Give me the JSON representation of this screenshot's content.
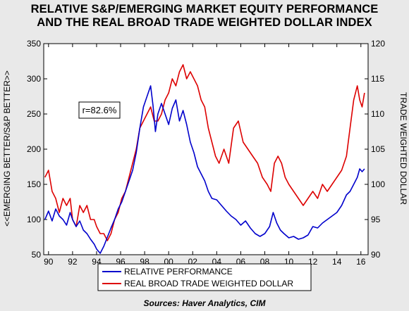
{
  "title_line1": "RELATIVE S&P/EMERGING MARKET EQUITY PERFORMANCE",
  "title_line2": "AND THE REAL BROAD TRADE WEIGHTED DOLLAR INDEX",
  "source": "Sources:  Haver Analytics, CIM",
  "chart_data": {
    "type": "line",
    "title": "RELATIVE S&P/EMERGING MARKET EQUITY PERFORMANCE AND THE REAL BROAD TRADE WEIGHTED DOLLAR INDEX",
    "ylabel_left": "<<EMERGING BETTER/S&P BETTER>>",
    "ylabel_right": "TRADE WEIGHTED DOLLAR",
    "xlim": [
      1989.6,
      2016.6
    ],
    "ylim_left": [
      50,
      350
    ],
    "ylim_right": [
      90,
      120
    ],
    "x_ticks": [
      1990,
      1992,
      1994,
      1996,
      1998,
      2000,
      2002,
      2004,
      2006,
      2008,
      2010,
      2012,
      2014,
      2016
    ],
    "x_tick_labels": [
      "90",
      "92",
      "94",
      "96",
      "98",
      "00",
      "02",
      "04",
      "06",
      "08",
      "10",
      "12",
      "14",
      "16"
    ],
    "y_ticks_left": [
      50,
      100,
      150,
      200,
      250,
      300,
      350
    ],
    "y_ticks_right": [
      90,
      95,
      100,
      105,
      110,
      115,
      120
    ],
    "annotation": "r=82.6%",
    "legend": [
      "RELATIVE PERFORMANCE",
      "REAL BROAD TRADE WEIGHTED DOLLAR"
    ],
    "legend_position": "bottom",
    "series": [
      {
        "name": "RELATIVE PERFORMANCE",
        "axis": "left",
        "color": "#0000cc",
        "x": [
          1989.7,
          1990.0,
          1990.3,
          1990.6,
          1990.9,
          1991.2,
          1991.5,
          1991.8,
          1992.0,
          1992.3,
          1992.6,
          1992.9,
          1993.2,
          1993.5,
          1993.8,
          1994.0,
          1994.3,
          1994.6,
          1994.9,
          1995.2,
          1995.5,
          1995.8,
          1996.1,
          1996.4,
          1996.7,
          1997.0,
          1997.3,
          1997.6,
          1997.9,
          1998.2,
          1998.5,
          1998.7,
          1998.9,
          1999.1,
          1999.4,
          1999.7,
          2000.0,
          2000.3,
          2000.6,
          2000.9,
          2001.2,
          2001.5,
          2001.8,
          2002.1,
          2002.4,
          2002.7,
          2003.0,
          2003.3,
          2003.6,
          2004.0,
          2004.4,
          2004.8,
          2005.2,
          2005.6,
          2006.0,
          2006.4,
          2006.8,
          2007.2,
          2007.6,
          2008.0,
          2008.4,
          2008.7,
          2009.0,
          2009.3,
          2009.6,
          2010.0,
          2010.4,
          2010.8,
          2011.2,
          2011.6,
          2012.0,
          2012.4,
          2012.8,
          2013.2,
          2013.6,
          2014.0,
          2014.4,
          2014.8,
          2015.1,
          2015.4,
          2015.7,
          2015.9,
          2016.1,
          2016.3
        ],
        "values": [
          100,
          112,
          98,
          115,
          105,
          100,
          92,
          110,
          100,
          90,
          98,
          85,
          80,
          72,
          65,
          58,
          52,
          62,
          75,
          88,
          100,
          115,
          125,
          140,
          155,
          170,
          195,
          230,
          260,
          275,
          290,
          262,
          225,
          250,
          265,
          250,
          235,
          258,
          270,
          240,
          255,
          235,
          210,
          195,
          175,
          165,
          155,
          140,
          130,
          128,
          120,
          112,
          105,
          100,
          92,
          98,
          88,
          80,
          76,
          80,
          90,
          110,
          95,
          85,
          80,
          74,
          76,
          72,
          74,
          78,
          90,
          88,
          95,
          100,
          105,
          110,
          120,
          135,
          140,
          150,
          160,
          172,
          168,
          172
        ]
      },
      {
        "name": "REAL BROAD TRADE WEIGHTED DOLLAR",
        "axis": "right",
        "color": "#dd0000",
        "x": [
          1989.7,
          1990.0,
          1990.3,
          1990.6,
          1990.9,
          1991.2,
          1991.5,
          1991.8,
          1992.0,
          1992.3,
          1992.6,
          1992.9,
          1993.2,
          1993.5,
          1993.8,
          1994.0,
          1994.3,
          1994.6,
          1994.9,
          1995.2,
          1995.5,
          1995.8,
          1996.1,
          1996.4,
          1996.7,
          1997.0,
          1997.3,
          1997.6,
          1997.9,
          1998.2,
          1998.5,
          1998.8,
          1999.1,
          1999.4,
          1999.7,
          2000.0,
          2000.3,
          2000.6,
          2000.9,
          2001.2,
          2001.5,
          2001.8,
          2002.1,
          2002.4,
          2002.7,
          2003.0,
          2003.3,
          2003.6,
          2003.9,
          2004.2,
          2004.6,
          2005.0,
          2005.4,
          2005.8,
          2006.2,
          2006.6,
          2007.0,
          2007.4,
          2007.8,
          2008.2,
          2008.5,
          2008.8,
          2009.1,
          2009.4,
          2009.7,
          2010.0,
          2010.4,
          2010.8,
          2011.2,
          2011.6,
          2012.0,
          2012.4,
          2012.8,
          2013.2,
          2013.6,
          2014.0,
          2014.4,
          2014.8,
          2015.1,
          2015.4,
          2015.7,
          2015.9,
          2016.1,
          2016.3
        ],
        "values": [
          101,
          102,
          99,
          98,
          96,
          98,
          97,
          98,
          95,
          94,
          97,
          96,
          97,
          95,
          95,
          94,
          93,
          93,
          92,
          93,
          95,
          96,
          98,
          99,
          101,
          103,
          105,
          108,
          109,
          110,
          111,
          109,
          109,
          110,
          112,
          113,
          115,
          114,
          116,
          117,
          115,
          116,
          115,
          114,
          112,
          111,
          108,
          106,
          104,
          103,
          105,
          103,
          108,
          109,
          106,
          105,
          104,
          103,
          101,
          100,
          99,
          103,
          104,
          103,
          101,
          100,
          99,
          98,
          97,
          98,
          99,
          98,
          100,
          99,
          100,
          101,
          102,
          104,
          108,
          112,
          114,
          112,
          111,
          113
        ]
      }
    ]
  }
}
